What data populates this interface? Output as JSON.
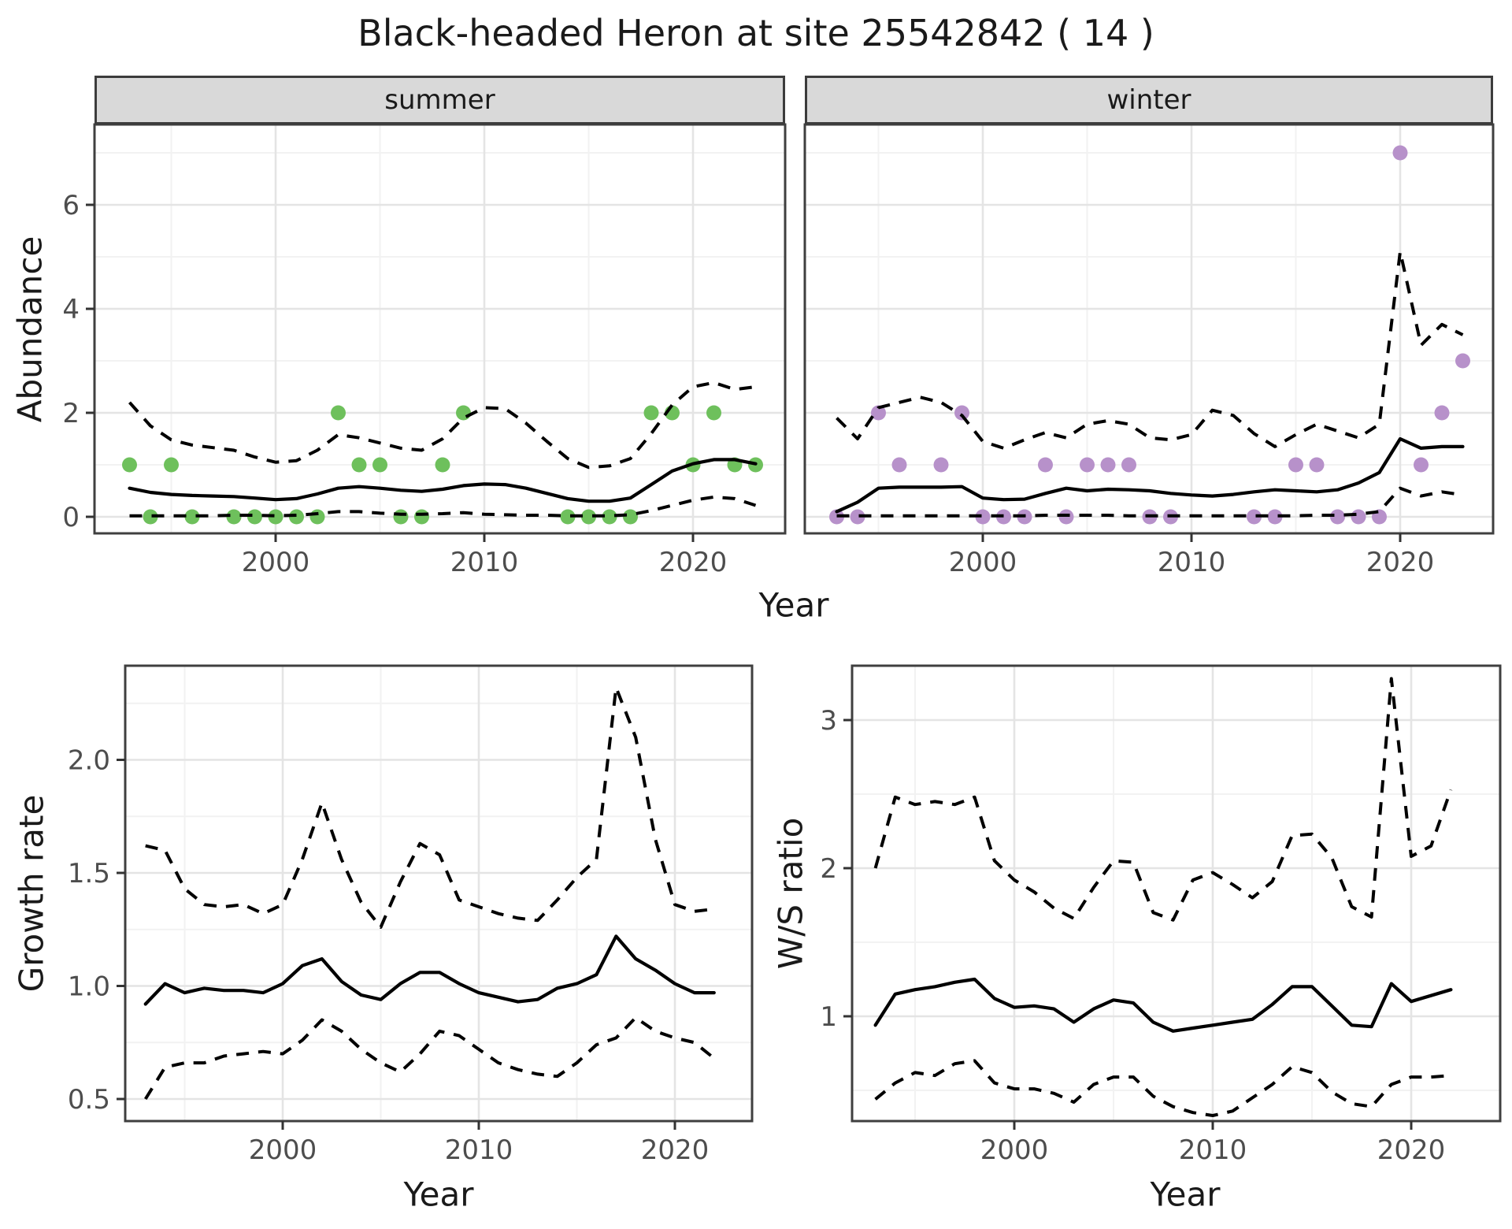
{
  "title": "Black-headed Heron at site 25542842 ( 14 )",
  "colors": {
    "summer_point": "#6ec05c",
    "winter_point": "#b791ca",
    "line": "#000000",
    "grid_major": "#e4e4e4",
    "grid_minor": "#f2f2f2",
    "panel_border": "#3f3f3f",
    "strip_bg": "#d9d9d9",
    "axis_text": "#4d4d4d",
    "title_text": "#1a1a1a"
  },
  "chart_data": [
    {
      "id": "abundance_summer",
      "type": "scatter",
      "facet_label": "summer",
      "ylabel": "Abundance",
      "xlabel": "Year",
      "x_ticks": [
        2000,
        2010,
        2020
      ],
      "x_tick_labels": [
        "2000",
        "2010",
        "2020"
      ],
      "x_minor": [
        1995,
        2005,
        2015
      ],
      "y_ticks": [
        0,
        2,
        4,
        6
      ],
      "y_tick_labels": [
        "0",
        "2",
        "4",
        "6"
      ],
      "y_minor": [
        1,
        3,
        5,
        7
      ],
      "xlim": [
        1991.3,
        2024.4
      ],
      "ylim": [
        -0.4,
        7.55
      ],
      "points": {
        "years": [
          1993,
          1994,
          1995,
          1996,
          1998,
          1999,
          2000,
          2001,
          2002,
          2003,
          2004,
          2005,
          2006,
          2007,
          2008,
          2009,
          2014,
          2015,
          2016,
          2017,
          2018,
          2019,
          2020,
          2021,
          2022,
          2023
        ],
        "counts": [
          1,
          0,
          1,
          0,
          0,
          0,
          0,
          0,
          0,
          2,
          1,
          1,
          0,
          0,
          1,
          2,
          0,
          0,
          0,
          0,
          2,
          2,
          1,
          2,
          1,
          1
        ]
      },
      "lines": {
        "years": [
          1993,
          1994,
          1995,
          1996,
          1997,
          1998,
          1999,
          2000,
          2001,
          2002,
          2003,
          2004,
          2005,
          2006,
          2007,
          2008,
          2009,
          2010,
          2011,
          2012,
          2013,
          2014,
          2015,
          2016,
          2017,
          2018,
          2019,
          2020,
          2021,
          2022,
          2023
        ],
        "fit": [
          0.55,
          0.47,
          0.43,
          0.41,
          0.4,
          0.39,
          0.36,
          0.33,
          0.35,
          0.44,
          0.55,
          0.58,
          0.55,
          0.51,
          0.49,
          0.53,
          0.6,
          0.63,
          0.62,
          0.55,
          0.45,
          0.35,
          0.3,
          0.3,
          0.36,
          0.62,
          0.88,
          1.02,
          1.1,
          1.1,
          1.02
        ],
        "upper": [
          2.2,
          1.75,
          1.48,
          1.38,
          1.33,
          1.28,
          1.15,
          1.05,
          1.08,
          1.28,
          1.58,
          1.52,
          1.42,
          1.32,
          1.28,
          1.5,
          1.9,
          2.1,
          2.08,
          1.8,
          1.45,
          1.12,
          0.95,
          0.98,
          1.12,
          1.6,
          2.15,
          2.5,
          2.58,
          2.45,
          2.5
        ],
        "lower": [
          0.02,
          0.02,
          0.02,
          0.02,
          0.02,
          0.03,
          0.03,
          0.02,
          0.03,
          0.06,
          0.1,
          0.1,
          0.07,
          0.05,
          0.05,
          0.06,
          0.08,
          0.05,
          0.04,
          0.03,
          0.03,
          0.02,
          0.02,
          0.02,
          0.04,
          0.12,
          0.22,
          0.32,
          0.38,
          0.35,
          0.22
        ]
      }
    },
    {
      "id": "abundance_winter",
      "type": "scatter",
      "facet_label": "winter",
      "ylabel": "Abundance",
      "xlabel": "Year",
      "x_ticks": [
        2000,
        2010,
        2020
      ],
      "x_tick_labels": [
        "2000",
        "2010",
        "2020"
      ],
      "x_minor": [
        1995,
        2005,
        2015
      ],
      "y_ticks": [
        0,
        2,
        4,
        6
      ],
      "y_tick_labels": [
        "0",
        "2",
        "4",
        "6"
      ],
      "y_minor": [
        1,
        3,
        5,
        7
      ],
      "xlim": [
        1991.5,
        2024.5
      ],
      "ylim": [
        -0.4,
        7.55
      ],
      "points": {
        "years": [
          1993,
          1994,
          1995,
          1996,
          1998,
          1999,
          2000,
          2001,
          2002,
          2003,
          2004,
          2005,
          2006,
          2007,
          2008,
          2009,
          2013,
          2014,
          2015,
          2016,
          2017,
          2018,
          2019,
          2020,
          2021,
          2022,
          2023
        ],
        "counts": [
          0,
          0,
          2,
          1,
          1,
          2,
          0,
          0,
          0,
          1,
          0,
          1,
          1,
          1,
          0,
          0,
          0,
          0,
          1,
          1,
          0,
          0,
          0,
          7,
          1,
          2,
          3
        ]
      },
      "lines": {
        "years": [
          1993,
          1994,
          1995,
          1996,
          1997,
          1998,
          1999,
          2000,
          2001,
          2002,
          2003,
          2004,
          2005,
          2006,
          2007,
          2008,
          2009,
          2010,
          2011,
          2012,
          2013,
          2014,
          2015,
          2016,
          2017,
          2018,
          2019,
          2020,
          2021,
          2022,
          2023
        ],
        "fit": [
          0.1,
          0.28,
          0.55,
          0.57,
          0.57,
          0.57,
          0.58,
          0.36,
          0.33,
          0.34,
          0.45,
          0.55,
          0.5,
          0.53,
          0.52,
          0.5,
          0.45,
          0.42,
          0.4,
          0.43,
          0.48,
          0.52,
          0.5,
          0.48,
          0.52,
          0.65,
          0.85,
          1.5,
          1.32,
          1.35,
          1.35
        ],
        "upper": [
          1.9,
          1.5,
          2.1,
          2.2,
          2.3,
          2.2,
          1.95,
          1.45,
          1.32,
          1.48,
          1.62,
          1.52,
          1.78,
          1.85,
          1.78,
          1.52,
          1.48,
          1.58,
          2.05,
          1.95,
          1.6,
          1.35,
          1.58,
          1.78,
          1.65,
          1.52,
          1.78,
          5.1,
          3.3,
          3.7,
          3.5
        ],
        "lower": [
          0.02,
          0.02,
          0.02,
          0.02,
          0.02,
          0.02,
          0.02,
          0.02,
          0.02,
          0.02,
          0.03,
          0.03,
          0.03,
          0.03,
          0.02,
          0.02,
          0.02,
          0.02,
          0.02,
          0.02,
          0.02,
          0.02,
          0.02,
          0.03,
          0.03,
          0.05,
          0.1,
          0.55,
          0.4,
          0.48,
          0.42
        ]
      }
    },
    {
      "id": "growth_rate",
      "type": "line",
      "facet_label": "",
      "ylabel": "Growth rate",
      "xlabel": "Year",
      "x_ticks": [
        2000,
        2010,
        2020
      ],
      "x_tick_labels": [
        "2000",
        "2010",
        "2020"
      ],
      "x_minor": [
        1995,
        2005,
        2015
      ],
      "y_ticks": [
        0.5,
        1.0,
        1.5,
        2.0
      ],
      "y_tick_labels": [
        "0.5",
        "1.0",
        "1.5",
        "2.0"
      ],
      "y_minor": [
        0.75,
        1.25,
        1.75,
        2.25
      ],
      "xlim": [
        1992.0,
        2023.9
      ],
      "ylim": [
        0.4,
        2.42
      ],
      "lines": {
        "years": [
          1993,
          1994,
          1995,
          1996,
          1997,
          1998,
          1999,
          2000,
          2001,
          2002,
          2003,
          2004,
          2005,
          2006,
          2007,
          2008,
          2009,
          2010,
          2011,
          2012,
          2013,
          2014,
          2015,
          2016,
          2017,
          2018,
          2019,
          2020,
          2021,
          2022
        ],
        "fit": [
          0.92,
          1.01,
          0.97,
          0.99,
          0.98,
          0.98,
          0.97,
          1.01,
          1.09,
          1.12,
          1.02,
          0.96,
          0.94,
          1.01,
          1.06,
          1.06,
          1.01,
          0.97,
          0.95,
          0.93,
          0.94,
          0.99,
          1.01,
          1.05,
          1.22,
          1.12,
          1.07,
          1.01,
          0.97,
          0.97
        ],
        "upper": [
          1.62,
          1.6,
          1.43,
          1.36,
          1.35,
          1.36,
          1.32,
          1.36,
          1.56,
          1.81,
          1.56,
          1.37,
          1.26,
          1.46,
          1.63,
          1.58,
          1.38,
          1.35,
          1.32,
          1.3,
          1.29,
          1.38,
          1.48,
          1.56,
          2.32,
          2.1,
          1.65,
          1.36,
          1.33,
          1.34
        ],
        "lower": [
          0.5,
          0.64,
          0.66,
          0.66,
          0.69,
          0.7,
          0.71,
          0.7,
          0.76,
          0.85,
          0.8,
          0.72,
          0.66,
          0.62,
          0.7,
          0.8,
          0.78,
          0.72,
          0.66,
          0.63,
          0.61,
          0.6,
          0.66,
          0.74,
          0.77,
          0.86,
          0.8,
          0.77,
          0.75,
          0.68
        ]
      }
    },
    {
      "id": "ws_ratio",
      "type": "line",
      "facet_label": "",
      "ylabel": "W/S ratio",
      "xlabel": "Year",
      "x_ticks": [
        2000,
        2010,
        2020
      ],
      "x_tick_labels": [
        "2000",
        "2010",
        "2020"
      ],
      "x_minor": [
        1995,
        2005,
        2015
      ],
      "y_ticks": [
        1,
        2,
        3
      ],
      "y_tick_labels": [
        "1",
        "2",
        "3"
      ],
      "y_minor": [
        0.5,
        1.5,
        2.5
      ],
      "xlim": [
        1991.8,
        2024.5
      ],
      "ylim": [
        0.29,
        3.44
      ],
      "lines": {
        "years": [
          1993,
          1994,
          1995,
          1996,
          1997,
          1998,
          1999,
          2000,
          2001,
          2002,
          2003,
          2004,
          2005,
          2006,
          2007,
          2008,
          2009,
          2010,
          2011,
          2012,
          2013,
          2014,
          2015,
          2016,
          2017,
          2018,
          2019,
          2020,
          2021,
          2022
        ],
        "fit": [
          0.94,
          1.15,
          1.18,
          1.2,
          1.23,
          1.25,
          1.12,
          1.06,
          1.07,
          1.05,
          0.96,
          1.05,
          1.11,
          1.09,
          0.96,
          0.9,
          0.92,
          0.94,
          0.96,
          0.98,
          1.08,
          1.2,
          1.2,
          1.07,
          0.94,
          0.93,
          1.22,
          1.1,
          1.14,
          1.18
        ],
        "upper": [
          2.0,
          2.48,
          2.43,
          2.45,
          2.43,
          2.48,
          2.05,
          1.92,
          1.84,
          1.73,
          1.66,
          1.87,
          2.05,
          2.04,
          1.7,
          1.65,
          1.92,
          1.97,
          1.89,
          1.8,
          1.91,
          2.22,
          2.23,
          2.07,
          1.74,
          1.67,
          3.28,
          2.08,
          2.15,
          2.53
        ],
        "lower": [
          0.44,
          0.55,
          0.62,
          0.6,
          0.68,
          0.7,
          0.55,
          0.51,
          0.51,
          0.48,
          0.42,
          0.54,
          0.59,
          0.59,
          0.46,
          0.39,
          0.35,
          0.33,
          0.36,
          0.45,
          0.54,
          0.66,
          0.62,
          0.49,
          0.41,
          0.39,
          0.54,
          0.59,
          0.59,
          0.6
        ]
      }
    }
  ]
}
